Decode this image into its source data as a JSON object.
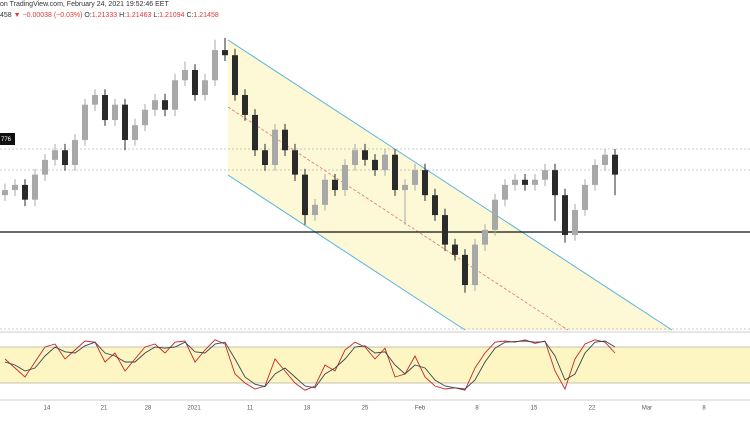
{
  "header": {
    "source": "on TradingView.com, February 24, 2021 19:52:46 EET",
    "last": "458",
    "change": "▼ −0.00038 (−0.03%)",
    "ohlc": [
      {
        "label": "O:",
        "value": "1.21333"
      },
      {
        "label": "H:",
        "value": "1.21463"
      },
      {
        "label": "L:",
        "value": "1.21094"
      },
      {
        "label": "C:",
        "value": "1.21458"
      }
    ],
    "price_label": "776"
  },
  "chart_data": [
    {
      "type": "candlestick",
      "up_color": "#a8a8a8",
      "down_color": "#2b2b2b",
      "ylim": [
        1.1894,
        1.2408
      ],
      "x_labels": [
        "14",
        "21",
        "28",
        "2021",
        "11",
        "18",
        "25",
        "Feb",
        "8",
        "15",
        "22",
        "Mar",
        "8"
      ],
      "open": [
        1.2104,
        1.2112,
        1.212,
        1.2097,
        1.2136,
        1.2159,
        1.2174,
        1.2151,
        1.219,
        1.2245,
        1.226,
        1.2221,
        1.2245,
        1.219,
        1.2213,
        1.2237,
        1.2252,
        1.2237,
        1.2283,
        1.2299,
        1.226,
        1.2283,
        1.233,
        1.2322,
        1.226,
        1.2229,
        1.2174,
        1.2151,
        1.2206,
        1.2174,
        1.2136,
        1.2073,
        1.2089,
        1.2128,
        1.2112,
        1.2151,
        1.2174,
        1.2159,
        1.2143,
        1.2167,
        1.2112,
        1.212,
        1.2143,
        1.2104,
        1.2073,
        1.2027,
        1.2011,
        1.1964,
        1.2027,
        1.205,
        1.2097,
        1.212,
        1.2128,
        1.212,
        1.2128,
        1.2143,
        1.2104,
        1.2042,
        1.2081,
        1.212,
        1.2151,
        1.2167
      ],
      "high": [
        1.2122,
        1.2129,
        1.2129,
        1.2145,
        1.2168,
        1.2184,
        1.2184,
        1.2199,
        1.2254,
        1.2269,
        1.2269,
        1.2254,
        1.2254,
        1.2223,
        1.2246,
        1.2262,
        1.2262,
        1.2293,
        1.2312,
        1.2308,
        1.2293,
        1.2346,
        1.2349,
        1.2332,
        1.2269,
        1.2238,
        1.2184,
        1.2215,
        1.2215,
        1.2184,
        1.2145,
        1.2098,
        1.2137,
        1.2137,
        1.216,
        1.2184,
        1.2184,
        1.2168,
        1.2176,
        1.2176,
        1.2129,
        1.2153,
        1.2153,
        1.2114,
        1.2083,
        1.2036,
        1.202,
        1.2036,
        1.2059,
        1.2106,
        1.2129,
        1.2137,
        1.2137,
        1.2137,
        1.2153,
        1.2153,
        1.2114,
        1.209,
        1.2129,
        1.216,
        1.2176,
        1.2176
      ],
      "low": [
        1.2095,
        1.2103,
        1.2087,
        1.2087,
        1.2126,
        1.215,
        1.2142,
        1.2142,
        1.2181,
        1.2235,
        1.2212,
        1.2212,
        1.2174,
        1.2181,
        1.2204,
        1.2227,
        1.2227,
        1.2227,
        1.2274,
        1.2251,
        1.2251,
        1.2274,
        1.2313,
        1.2251,
        1.222,
        1.2165,
        1.2142,
        1.2142,
        1.2165,
        1.2126,
        1.2058,
        1.2064,
        1.208,
        1.2103,
        1.2103,
        1.2142,
        1.215,
        1.2134,
        1.2134,
        1.2103,
        1.2058,
        1.2111,
        1.2095,
        1.2064,
        1.2017,
        1.2002,
        1.1952,
        1.1955,
        1.2017,
        1.2041,
        1.2087,
        1.2111,
        1.2111,
        1.2111,
        1.2118,
        1.2064,
        1.203,
        1.2033,
        1.2072,
        1.2111,
        1.2142,
        1.2104
      ],
      "close": [
        1.2112,
        1.212,
        1.2097,
        1.2136,
        1.2159,
        1.2174,
        1.2151,
        1.219,
        1.2245,
        1.226,
        1.2221,
        1.2245,
        1.219,
        1.2213,
        1.2237,
        1.2252,
        1.2237,
        1.2283,
        1.2299,
        1.226,
        1.2283,
        1.233,
        1.2322,
        1.226,
        1.2229,
        1.2174,
        1.2151,
        1.2206,
        1.2174,
        1.2136,
        1.2073,
        1.2089,
        1.2128,
        1.2112,
        1.2151,
        1.2174,
        1.2159,
        1.2143,
        1.2167,
        1.2112,
        1.212,
        1.2143,
        1.2104,
        1.2073,
        1.2027,
        1.2011,
        1.1964,
        1.2027,
        1.205,
        1.2097,
        1.212,
        1.2128,
        1.212,
        1.2128,
        1.2143,
        1.2104,
        1.2042,
        1.2081,
        1.212,
        1.2151,
        1.2167,
        1.2136
      ]
    },
    {
      "type": "line",
      "ylim": [
        0,
        100
      ],
      "bands": [
        20,
        80
      ],
      "band_color": "#fdf6c3",
      "series": [
        {
          "color": "#c62828",
          "values": [
            60,
            45,
            30,
            55,
            80,
            85,
            60,
            75,
            90,
            88,
            55,
            70,
            40,
            60,
            80,
            85,
            70,
            88,
            90,
            55,
            75,
            92,
            85,
            35,
            20,
            10,
            15,
            60,
            40,
            20,
            8,
            15,
            50,
            40,
            75,
            88,
            80,
            60,
            78,
            30,
            35,
            65,
            30,
            15,
            10,
            12,
            8,
            45,
            70,
            88,
            90,
            88,
            92,
            86,
            90,
            40,
            10,
            60,
            85,
            92,
            88,
            70
          ]
        },
        {
          "color": "#37474f",
          "values": [
            55,
            50,
            40,
            45,
            65,
            80,
            72,
            70,
            82,
            88,
            70,
            65,
            55,
            55,
            70,
            80,
            78,
            80,
            88,
            72,
            70,
            85,
            88,
            60,
            30,
            18,
            14,
            35,
            45,
            30,
            15,
            12,
            35,
            45,
            60,
            80,
            82,
            70,
            72,
            50,
            35,
            50,
            45,
            25,
            15,
            12,
            10,
            25,
            55,
            78,
            88,
            89,
            90,
            88,
            89,
            65,
            25,
            35,
            70,
            88,
            90,
            80
          ]
        }
      ]
    }
  ]
}
